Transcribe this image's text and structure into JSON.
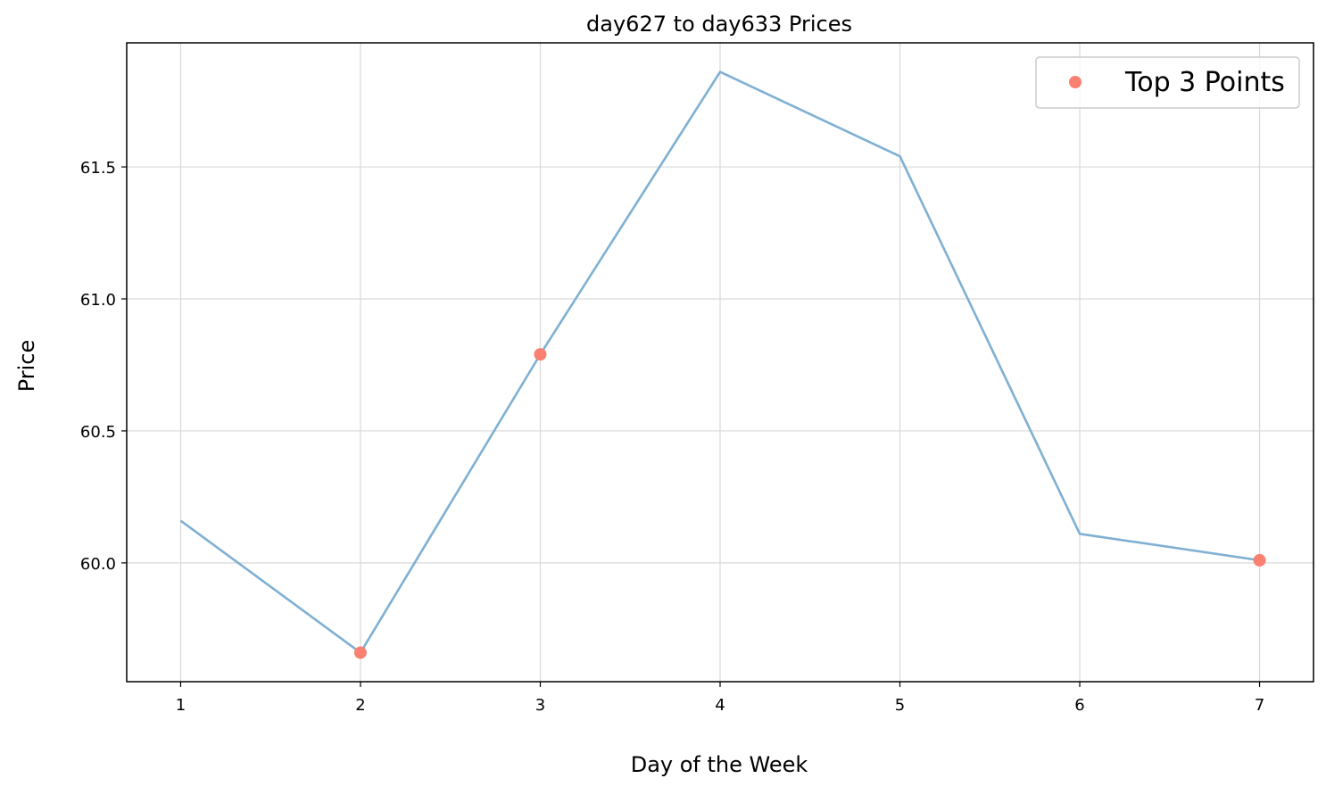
{
  "chart_data": {
    "type": "line",
    "title": "day627 to day633 Prices",
    "xlabel": "Day of the Week",
    "ylabel": "Price",
    "x": [
      1,
      2,
      3,
      4,
      5,
      6,
      7
    ],
    "xticks": [
      "1",
      "2",
      "3",
      "4",
      "5",
      "6",
      "7"
    ],
    "yticks": [
      "60.0",
      "60.5",
      "61.0",
      "61.5"
    ],
    "ytick_values": [
      60.0,
      60.5,
      61.0,
      61.5
    ],
    "xlim": [
      0.7,
      7.3
    ],
    "ylim": [
      59.55,
      61.97
    ],
    "grid": true,
    "series": [
      {
        "values": [
          60.16,
          59.66,
          60.79,
          61.86,
          61.54,
          60.11,
          60.01
        ],
        "color": "#7fb0d3"
      }
    ],
    "highlight_points": {
      "name": "Top 3 Points",
      "x": [
        2,
        3,
        7
      ],
      "y": [
        59.66,
        60.79,
        60.01
      ],
      "color": "#fa8072"
    },
    "legend": {
      "position": "top-right",
      "entries": [
        "Top 3 Points"
      ]
    }
  }
}
